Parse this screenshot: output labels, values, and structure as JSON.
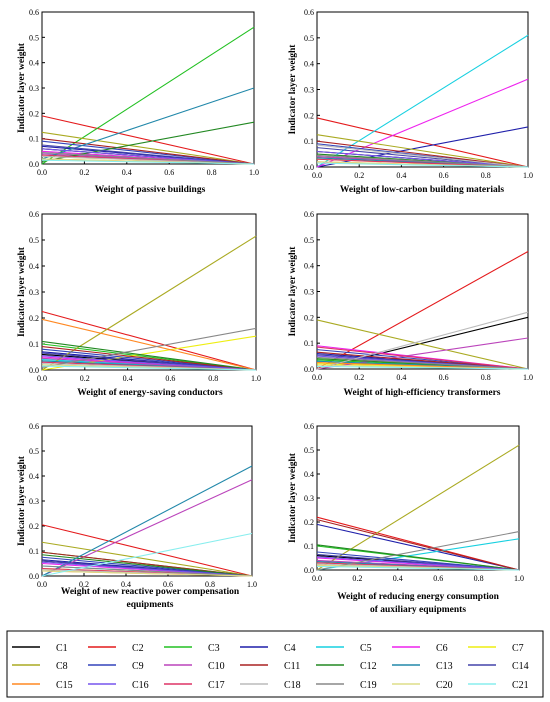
{
  "legend": [
    {
      "label": "C1",
      "color": "#000000"
    },
    {
      "label": "C2",
      "color": "#e41a1c"
    },
    {
      "label": "C3",
      "color": "#22c022"
    },
    {
      "label": "C4",
      "color": "#1f1faa"
    },
    {
      "label": "C5",
      "color": "#17d0e0"
    },
    {
      "label": "C6",
      "color": "#ee22ee"
    },
    {
      "label": "C7",
      "color": "#eeee11"
    },
    {
      "label": "C8",
      "color": "#aaaa22"
    },
    {
      "label": "C9",
      "color": "#3344bb"
    },
    {
      "label": "C10",
      "color": "#bb44bb"
    },
    {
      "label": "C11",
      "color": "#aa2222"
    },
    {
      "label": "C12",
      "color": "#228822"
    },
    {
      "label": "C13",
      "color": "#2288aa"
    },
    {
      "label": "C14",
      "color": "#4444aa"
    },
    {
      "label": "C15",
      "color": "#ff8822"
    },
    {
      "label": "C16",
      "color": "#7755ee"
    },
    {
      "label": "C17",
      "color": "#dd3366"
    },
    {
      "label": "C18",
      "color": "#bbbbbb"
    },
    {
      "label": "C19",
      "color": "#888888"
    },
    {
      "label": "C20",
      "color": "#dddd88"
    },
    {
      "label": "C21",
      "color": "#88eeee"
    }
  ],
  "chart_data": [
    {
      "type": "line",
      "xlabel": "Weight of passive buildings",
      "ylabel": "Indicator layer weight",
      "xlim": [
        0,
        1
      ],
      "ylim": [
        0,
        0.6
      ],
      "xticks": [
        "0.0",
        "0.2",
        "0.4",
        "0.6",
        "0.8",
        "1.0"
      ],
      "yticks": [
        "0.0",
        "0.1",
        "0.2",
        "0.3",
        "0.4",
        "0.5",
        "0.6"
      ],
      "series": [
        {
          "ref": "C1",
          "y0": 0.06,
          "y1": 0.0
        },
        {
          "ref": "C2",
          "y0": 0.19,
          "y1": 0.0
        },
        {
          "ref": "C3",
          "y0": 0.0,
          "y1": 0.54
        },
        {
          "ref": "C4",
          "y0": 0.07,
          "y1": 0.0
        },
        {
          "ref": "C5",
          "y0": 0.04,
          "y1": 0.0
        },
        {
          "ref": "C6",
          "y0": 0.05,
          "y1": 0.0
        },
        {
          "ref": "C7",
          "y0": 0.03,
          "y1": 0.0
        },
        {
          "ref": "C8",
          "y0": 0.125,
          "y1": 0.0
        },
        {
          "ref": "C9",
          "y0": 0.09,
          "y1": 0.0
        },
        {
          "ref": "C10",
          "y0": 0.04,
          "y1": 0.0
        },
        {
          "ref": "C11",
          "y0": 0.1,
          "y1": 0.0
        },
        {
          "ref": "C12",
          "y0": 0.01,
          "y1": 0.165
        },
        {
          "ref": "C13",
          "y0": 0.02,
          "y1": 0.3
        },
        {
          "ref": "C14",
          "y0": 0.075,
          "y1": 0.0
        },
        {
          "ref": "C15",
          "y0": 0.02,
          "y1": 0.0
        },
        {
          "ref": "C16",
          "y0": 0.06,
          "y1": 0.0
        },
        {
          "ref": "C17",
          "y0": 0.035,
          "y1": 0.0
        },
        {
          "ref": "C18",
          "y0": 0.03,
          "y1": 0.0
        },
        {
          "ref": "C19",
          "y0": 0.045,
          "y1": 0.0
        },
        {
          "ref": "C20",
          "y0": 0.02,
          "y1": 0.0
        },
        {
          "ref": "C21",
          "y0": 0.015,
          "y1": 0.0
        }
      ]
    },
    {
      "type": "line",
      "xlabel": "Weight of low-carbon building materials",
      "ylabel": "Indicator layer weight",
      "xlim": [
        0,
        1
      ],
      "ylim": [
        0,
        0.6
      ],
      "xticks": [
        "0.0",
        "0.2",
        "0.4",
        "0.6",
        "0.8",
        "1.0"
      ],
      "yticks": [
        "0.0",
        "0.1",
        "0.2",
        "0.3",
        "0.4",
        "0.5",
        "0.6"
      ],
      "series": [
        {
          "ref": "C1",
          "y0": 0.06,
          "y1": 0.0
        },
        {
          "ref": "C2",
          "y0": 0.19,
          "y1": 0.0
        },
        {
          "ref": "C3",
          "y0": 0.04,
          "y1": 0.0
        },
        {
          "ref": "C4",
          "y0": 0.0,
          "y1": 0.155
        },
        {
          "ref": "C5",
          "y0": 0.0,
          "y1": 0.51
        },
        {
          "ref": "C6",
          "y0": 0.0,
          "y1": 0.34
        },
        {
          "ref": "C7",
          "y0": 0.03,
          "y1": 0.0
        },
        {
          "ref": "C8",
          "y0": 0.125,
          "y1": 0.0
        },
        {
          "ref": "C9",
          "y0": 0.09,
          "y1": 0.0
        },
        {
          "ref": "C10",
          "y0": 0.04,
          "y1": 0.0
        },
        {
          "ref": "C11",
          "y0": 0.1,
          "y1": 0.0
        },
        {
          "ref": "C12",
          "y0": 0.05,
          "y1": 0.0
        },
        {
          "ref": "C13",
          "y0": 0.035,
          "y1": 0.0
        },
        {
          "ref": "C14",
          "y0": 0.075,
          "y1": 0.0
        },
        {
          "ref": "C15",
          "y0": 0.02,
          "y1": 0.0
        },
        {
          "ref": "C16",
          "y0": 0.06,
          "y1": 0.0
        },
        {
          "ref": "C17",
          "y0": 0.03,
          "y1": 0.0
        },
        {
          "ref": "C18",
          "y0": 0.085,
          "y1": 0.0
        },
        {
          "ref": "C19",
          "y0": 0.045,
          "y1": 0.0
        },
        {
          "ref": "C20",
          "y0": 0.02,
          "y1": 0.0
        },
        {
          "ref": "C21",
          "y0": 0.015,
          "y1": 0.0
        }
      ]
    },
    {
      "type": "line",
      "xlabel": "Weight of energy-saving conductors",
      "ylabel": "Indicator layer weight",
      "xlim": [
        0,
        1
      ],
      "ylim": [
        0,
        0.6
      ],
      "xticks": [
        "0.0",
        "0.2",
        "0.4",
        "0.6",
        "0.8",
        "1.0"
      ],
      "yticks": [
        "0.0",
        "0.1",
        "0.2",
        "0.3",
        "0.4",
        "0.5",
        "0.6"
      ],
      "series": [
        {
          "ref": "C1",
          "y0": 0.06,
          "y1": 0.0
        },
        {
          "ref": "C2",
          "y0": 0.225,
          "y1": 0.0
        },
        {
          "ref": "C3",
          "y0": 0.1,
          "y1": 0.0
        },
        {
          "ref": "C4",
          "y0": 0.07,
          "y1": 0.0
        },
        {
          "ref": "C5",
          "y0": 0.04,
          "y1": 0.0
        },
        {
          "ref": "C6",
          "y0": 0.05,
          "y1": 0.0
        },
        {
          "ref": "C7",
          "y0": 0.0,
          "y1": 0.13
        },
        {
          "ref": "C8",
          "y0": 0.0,
          "y1": 0.515
        },
        {
          "ref": "C9",
          "y0": 0.08,
          "y1": 0.0
        },
        {
          "ref": "C10",
          "y0": 0.045,
          "y1": 0.0
        },
        {
          "ref": "C11",
          "y0": 0.09,
          "y1": 0.0
        },
        {
          "ref": "C12",
          "y0": 0.11,
          "y1": 0.0
        },
        {
          "ref": "C13",
          "y0": 0.035,
          "y1": 0.0
        },
        {
          "ref": "C14",
          "y0": 0.065,
          "y1": 0.0
        },
        {
          "ref": "C15",
          "y0": 0.195,
          "y1": 0.0
        },
        {
          "ref": "C16",
          "y0": 0.055,
          "y1": 0.0
        },
        {
          "ref": "C17",
          "y0": 0.03,
          "y1": 0.0
        },
        {
          "ref": "C18",
          "y0": 0.025,
          "y1": 0.0
        },
        {
          "ref": "C19",
          "y0": 0.01,
          "y1": 0.16
        },
        {
          "ref": "C20",
          "y0": 0.02,
          "y1": 0.0
        },
        {
          "ref": "C21",
          "y0": 0.015,
          "y1": 0.0
        }
      ]
    },
    {
      "type": "line",
      "xlabel": "Weight of high-efficiency transformers",
      "ylabel": "Indicator layer weight",
      "xlim": [
        0,
        1
      ],
      "ylim": [
        0,
        0.6
      ],
      "xticks": [
        "0.0",
        "0.2",
        "0.4",
        "0.6",
        "0.8",
        "1.0"
      ],
      "yticks": [
        "0.0",
        "0.1",
        "0.2",
        "0.3",
        "0.4",
        "0.5",
        "0.6"
      ],
      "series": [
        {
          "ref": "C1",
          "y0": 0.0,
          "y1": 0.2
        },
        {
          "ref": "C2",
          "y0": 0.0,
          "y1": 0.455
        },
        {
          "ref": "C3",
          "y0": 0.035,
          "y1": 0.0
        },
        {
          "ref": "C4",
          "y0": 0.06,
          "y1": 0.0
        },
        {
          "ref": "C5",
          "y0": 0.03,
          "y1": 0.0
        },
        {
          "ref": "C6",
          "y0": 0.09,
          "y1": 0.0
        },
        {
          "ref": "C7",
          "y0": 0.02,
          "y1": 0.0
        },
        {
          "ref": "C8",
          "y0": 0.19,
          "y1": 0.0
        },
        {
          "ref": "C9",
          "y0": 0.075,
          "y1": 0.0
        },
        {
          "ref": "C10",
          "y0": 0.0,
          "y1": 0.12
        },
        {
          "ref": "C11",
          "y0": 0.065,
          "y1": 0.0
        },
        {
          "ref": "C12",
          "y0": 0.04,
          "y1": 0.0
        },
        {
          "ref": "C13",
          "y0": 0.03,
          "y1": 0.0
        },
        {
          "ref": "C14",
          "y0": 0.055,
          "y1": 0.0
        },
        {
          "ref": "C15",
          "y0": 0.025,
          "y1": 0.0
        },
        {
          "ref": "C16",
          "y0": 0.05,
          "y1": 0.0
        },
        {
          "ref": "C17",
          "y0": 0.085,
          "y1": 0.0
        },
        {
          "ref": "C18",
          "y0": 0.0,
          "y1": 0.22
        },
        {
          "ref": "C19",
          "y0": 0.045,
          "y1": 0.0
        },
        {
          "ref": "C20",
          "y0": 0.015,
          "y1": 0.0
        },
        {
          "ref": "C21",
          "y0": 0.01,
          "y1": 0.0
        }
      ]
    },
    {
      "type": "line",
      "xlabel": "Weight of new reactive power compensation equipments",
      "ylabel": "Indicator layer weight",
      "xlim": [
        0,
        1
      ],
      "ylim": [
        0,
        0.6
      ],
      "xticks": [
        "0.0",
        "0.2",
        "0.4",
        "0.6",
        "0.8",
        "1.0"
      ],
      "yticks": [
        "0.0",
        "0.1",
        "0.2",
        "0.3",
        "0.4",
        "0.5",
        "0.6"
      ],
      "series": [
        {
          "ref": "C1",
          "y0": 0.06,
          "y1": 0.0
        },
        {
          "ref": "C2",
          "y0": 0.205,
          "y1": 0.0
        },
        {
          "ref": "C3",
          "y0": 0.095,
          "y1": 0.0
        },
        {
          "ref": "C4",
          "y0": 0.065,
          "y1": 0.0
        },
        {
          "ref": "C5",
          "y0": 0.04,
          "y1": 0.0
        },
        {
          "ref": "C6",
          "y0": 0.05,
          "y1": 0.0
        },
        {
          "ref": "C7",
          "y0": 0.03,
          "y1": 0.0
        },
        {
          "ref": "C8",
          "y0": 0.135,
          "y1": 0.0
        },
        {
          "ref": "C9",
          "y0": 0.075,
          "y1": 0.0
        },
        {
          "ref": "C10",
          "y0": 0.0,
          "y1": 0.385
        },
        {
          "ref": "C11",
          "y0": 0.095,
          "y1": 0.0
        },
        {
          "ref": "C12",
          "y0": 0.085,
          "y1": 0.0
        },
        {
          "ref": "C13",
          "y0": 0.0,
          "y1": 0.44
        },
        {
          "ref": "C14",
          "y0": 0.06,
          "y1": 0.0
        },
        {
          "ref": "C15",
          "y0": 0.02,
          "y1": 0.0
        },
        {
          "ref": "C16",
          "y0": 0.055,
          "y1": 0.0
        },
        {
          "ref": "C17",
          "y0": 0.03,
          "y1": 0.0
        },
        {
          "ref": "C18",
          "y0": 0.025,
          "y1": 0.0
        },
        {
          "ref": "C19",
          "y0": 0.04,
          "y1": 0.0
        },
        {
          "ref": "C20",
          "y0": 0.02,
          "y1": 0.0
        },
        {
          "ref": "C21",
          "y0": 0.0,
          "y1": 0.17
        }
      ]
    },
    {
      "type": "line",
      "xlabel": "Weight of reducing energy consumption of auxiliary equipments",
      "ylabel": "Indicator layer weight",
      "xlim": [
        0,
        1
      ],
      "ylim": [
        0,
        0.6
      ],
      "xticks": [
        "0.0",
        "0.2",
        "0.4",
        "0.6",
        "0.8",
        "1.0"
      ],
      "yticks": [
        "0.0",
        "0.1",
        "0.2",
        "0.3",
        "0.4",
        "0.5",
        "0.6"
      ],
      "series": [
        {
          "ref": "C1",
          "y0": 0.06,
          "y1": 0.0
        },
        {
          "ref": "C2",
          "y0": 0.22,
          "y1": 0.0
        },
        {
          "ref": "C3",
          "y0": 0.1,
          "y1": 0.0
        },
        {
          "ref": "C4",
          "y0": 0.19,
          "y1": 0.0
        },
        {
          "ref": "C5",
          "y0": 0.0,
          "y1": 0.13
        },
        {
          "ref": "C6",
          "y0": 0.05,
          "y1": 0.0
        },
        {
          "ref": "C7",
          "y0": 0.03,
          "y1": 0.0
        },
        {
          "ref": "C8",
          "y0": 0.0,
          "y1": 0.52
        },
        {
          "ref": "C9",
          "y0": 0.075,
          "y1": 0.0
        },
        {
          "ref": "C10",
          "y0": 0.04,
          "y1": 0.0
        },
        {
          "ref": "C11",
          "y0": 0.21,
          "y1": 0.0
        },
        {
          "ref": "C12",
          "y0": 0.105,
          "y1": 0.0
        },
        {
          "ref": "C13",
          "y0": 0.035,
          "y1": 0.0
        },
        {
          "ref": "C14",
          "y0": 0.065,
          "y1": 0.0
        },
        {
          "ref": "C15",
          "y0": 0.02,
          "y1": 0.0
        },
        {
          "ref": "C16",
          "y0": 0.055,
          "y1": 0.0
        },
        {
          "ref": "C17",
          "y0": 0.03,
          "y1": 0.0
        },
        {
          "ref": "C18",
          "y0": 0.025,
          "y1": 0.0
        },
        {
          "ref": "C19",
          "y0": 0.0,
          "y1": 0.16
        },
        {
          "ref": "C20",
          "y0": 0.02,
          "y1": 0.0
        },
        {
          "ref": "C21",
          "y0": 0.015,
          "y1": 0.0
        }
      ]
    }
  ]
}
